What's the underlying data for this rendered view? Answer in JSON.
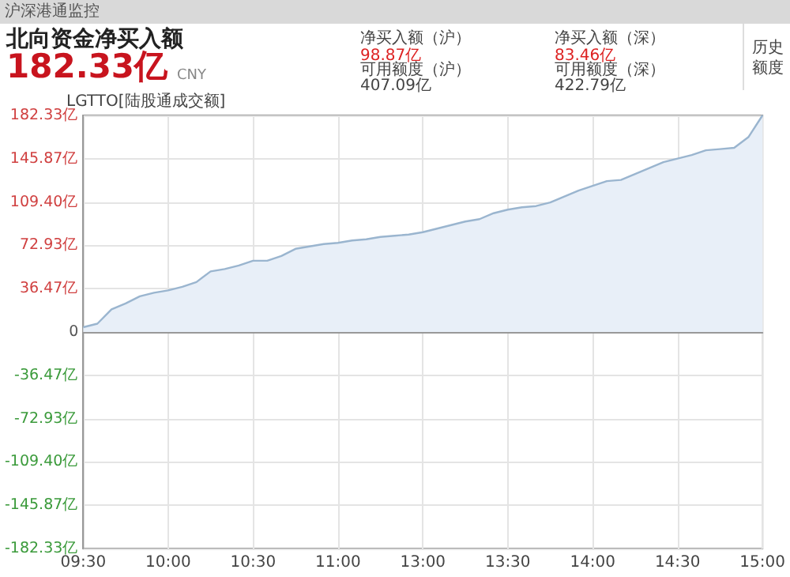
{
  "chart_data": {
    "type": "area",
    "title": "北向资金净买入额",
    "annotations": [
      "沪深港通监控",
      "182.33亿",
      "CNY",
      "净买入额（沪）",
      "98.87亿",
      "可用额度（沪）",
      "407.09亿",
      "净买入额（深）",
      "83.46亿",
      "可用额度（深）",
      "422.79亿",
      "历史额度",
      "LGTTO[陆股通成交额]"
    ],
    "categories": [
      "09:30",
      null,
      null,
      null,
      null,
      null,
      "10:00",
      null,
      null,
      null,
      null,
      null,
      "10:30",
      null,
      null,
      null,
      null,
      null,
      "11:00",
      null,
      null,
      null,
      null,
      null,
      "13:00",
      null,
      null,
      null,
      null,
      null,
      "13:30",
      null,
      null,
      null,
      null,
      null,
      "14:00",
      null,
      null,
      null,
      null,
      null,
      "14:30",
      null,
      null,
      null,
      null,
      null,
      "15:00"
    ],
    "series": [
      {
        "color": "#9ab5cf",
        "values": [
          4,
          7,
          19,
          24,
          30,
          33,
          35,
          38,
          42,
          51,
          53,
          56,
          60,
          60,
          64,
          70,
          72,
          74,
          75,
          77,
          78,
          80,
          81,
          82,
          84,
          87,
          90,
          93,
          95,
          100,
          103,
          105,
          106,
          109,
          114,
          119,
          123,
          127,
          128,
          133,
          138,
          143,
          146,
          149,
          153,
          154,
          155,
          164,
          182.33
        ]
      }
    ],
    "ylim": [
      -182.33,
      182.33
    ],
    "yticks": [
      {
        "value": -182.33,
        "label": "-182.33亿"
      },
      {
        "value": -145.87,
        "label": "-145.87亿"
      },
      {
        "value": -109.4,
        "label": "-109.40亿"
      },
      {
        "value": -72.93,
        "label": "-72.93亿"
      },
      {
        "value": -36.47,
        "label": "-36.47亿"
      },
      0,
      {
        "value": 36.47,
        "label": "36.47亿"
      },
      {
        "value": 72.93,
        "label": "72.93亿"
      },
      {
        "value": 109.4,
        "label": "109.40亿"
      },
      {
        "value": 145.87,
        "label": "145.87亿"
      },
      {
        "value": 182.33,
        "label": "182.33亿"
      }
    ],
    "grid": true,
    "marker": "none"
  }
}
